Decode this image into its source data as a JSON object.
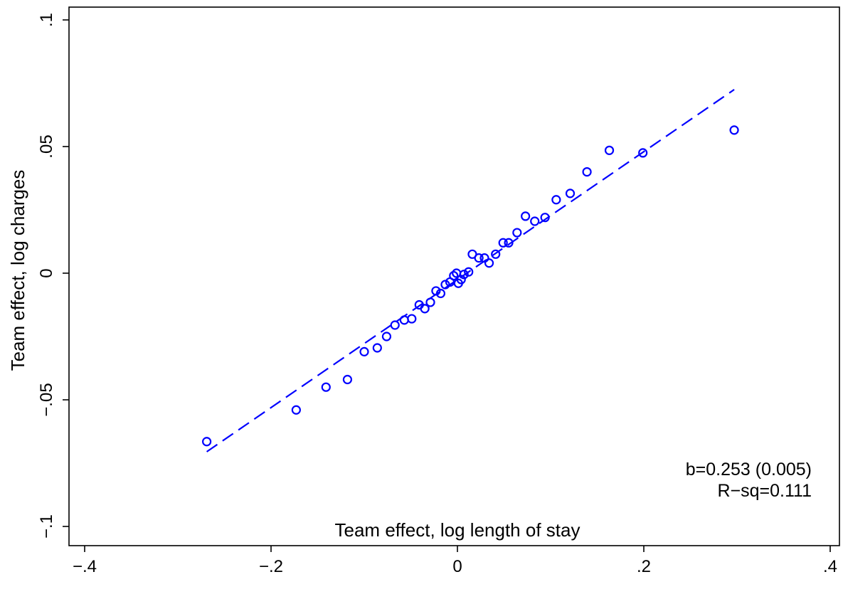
{
  "chart_data": {
    "type": "scatter",
    "title": "",
    "xlabel": "Team effect, log length of stay",
    "ylabel": "Team effect, log charges",
    "xlim": [
      -0.42,
      0.4
    ],
    "ylim": [
      -0.11,
      0.105
    ],
    "x_ticks": [
      -0.4,
      -0.2,
      0,
      0.2,
      0.4
    ],
    "x_tick_labels": [
      "-.4",
      "-.2",
      "0",
      ".2",
      ".4"
    ],
    "y_ticks": [
      -0.1,
      -0.05,
      0,
      0.05,
      0.1
    ],
    "y_tick_labels": [
      "-.1",
      "-.05",
      "0",
      ".05",
      ".1"
    ],
    "grid": false,
    "color": "#0000ff",
    "points": [
      {
        "x": -0.269,
        "y": -0.0665
      },
      {
        "x": -0.173,
        "y": -0.054
      },
      {
        "x": -0.141,
        "y": -0.045
      },
      {
        "x": -0.118,
        "y": -0.042
      },
      {
        "x": -0.1,
        "y": -0.031
      },
      {
        "x": -0.086,
        "y": -0.0295
      },
      {
        "x": -0.076,
        "y": -0.025
      },
      {
        "x": -0.067,
        "y": -0.0205
      },
      {
        "x": -0.057,
        "y": -0.0185
      },
      {
        "x": -0.049,
        "y": -0.018
      },
      {
        "x": -0.041,
        "y": -0.0125
      },
      {
        "x": -0.035,
        "y": -0.014
      },
      {
        "x": -0.029,
        "y": -0.0115
      },
      {
        "x": -0.023,
        "y": -0.007
      },
      {
        "x": -0.018,
        "y": -0.008
      },
      {
        "x": -0.013,
        "y": -0.0045
      },
      {
        "x": -0.008,
        "y": -0.0035
      },
      {
        "x": -0.004,
        "y": -0.001
      },
      {
        "x": -0.001,
        "y": 0.0
      },
      {
        "x": 0.001,
        "y": -0.004
      },
      {
        "x": 0.004,
        "y": -0.0025
      },
      {
        "x": 0.007,
        "y": -0.0005
      },
      {
        "x": 0.012,
        "y": 0.0005
      },
      {
        "x": 0.016,
        "y": 0.0075
      },
      {
        "x": 0.023,
        "y": 0.006
      },
      {
        "x": 0.029,
        "y": 0.006
      },
      {
        "x": 0.034,
        "y": 0.004
      },
      {
        "x": 0.041,
        "y": 0.0075
      },
      {
        "x": 0.049,
        "y": 0.012
      },
      {
        "x": 0.055,
        "y": 0.012
      },
      {
        "x": 0.064,
        "y": 0.016
      },
      {
        "x": 0.073,
        "y": 0.0225
      },
      {
        "x": 0.083,
        "y": 0.0205
      },
      {
        "x": 0.094,
        "y": 0.022
      },
      {
        "x": 0.106,
        "y": 0.029
      },
      {
        "x": 0.121,
        "y": 0.0315
      },
      {
        "x": 0.139,
        "y": 0.04
      },
      {
        "x": 0.163,
        "y": 0.0485
      },
      {
        "x": 0.199,
        "y": 0.0475
      },
      {
        "x": 0.297,
        "y": 0.0565
      }
    ],
    "fit_line": {
      "x": [
        -0.269,
        0.297
      ],
      "y": [
        -0.0705,
        0.0725
      ],
      "style": "dashed"
    },
    "annotations": [
      "b=0.253 (0.005)",
      "R−sq=0.111"
    ]
  }
}
